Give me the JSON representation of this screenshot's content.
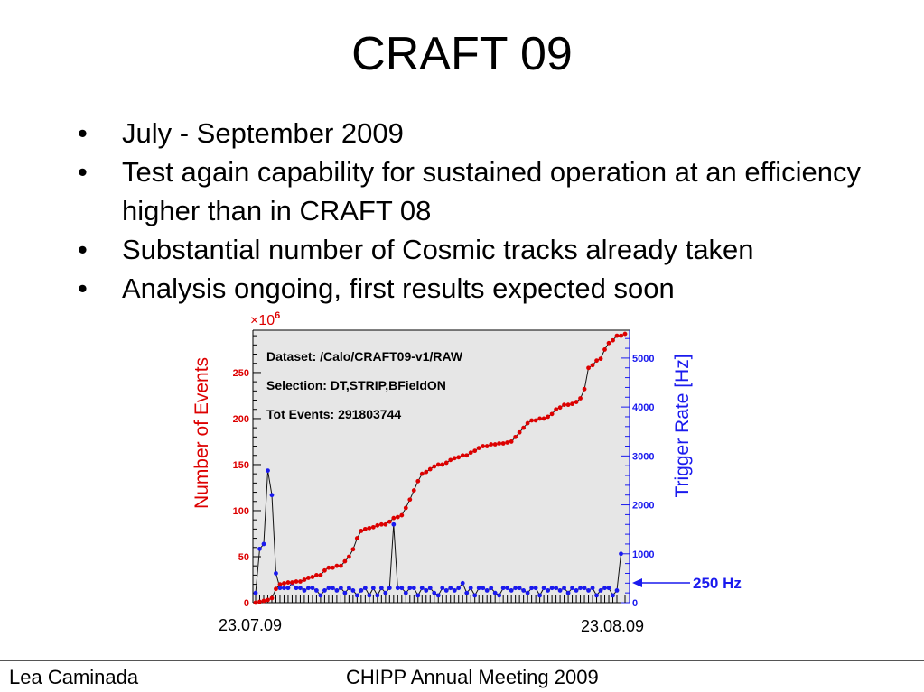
{
  "slide": {
    "title": "CRAFT 09",
    "bullets": [
      {
        "marker": "•",
        "text": "July - September 2009"
      },
      {
        "marker": "•",
        "text": "Test again capability for sustained operation at an efficiency higher than in CRAFT 08"
      },
      {
        "marker": "•",
        "text": "Substantial number of Cosmic tracks already taken"
      },
      {
        "marker": "•",
        "text": "Analysis ongoing, first results expected soon"
      }
    ],
    "footer": {
      "left": "Lea Caminada",
      "center": "CHIPP Annual Meeting 2009"
    }
  },
  "colors": {
    "events": "#dd0000",
    "rate": "#1a1aee",
    "plot_bg": "#e6e6e6",
    "frame_bg": "#ffffff",
    "arrow": "#1a1aee"
  },
  "chart_data": {
    "type": "line",
    "left_axis_label": "Number of Events",
    "right_axis_label": "Trigger Rate [Hz]",
    "multiplier": {
      "prefix": "×10",
      "exponent": "6"
    },
    "info_lines": [
      "Dataset: /Calo/CRAFT09-v1/RAW",
      "Selection: DT,STRIP,BFieldON",
      "Tot Events: 291803744"
    ],
    "x_start_label": "23.07.09",
    "x_end_label": "23.08.09",
    "y_left_ticks": [
      0,
      50,
      100,
      150,
      200,
      250
    ],
    "y_left_range": [
      0,
      296
    ],
    "y_right_ticks": [
      0,
      1000,
      2000,
      3000,
      4000,
      5000
    ],
    "y_right_range": [
      0,
      5570
    ],
    "annotation": {
      "text": "250 Hz",
      "rate": 250
    },
    "series": [
      {
        "name": "Number of Events",
        "values": [
          0,
          1,
          2,
          3,
          5,
          15,
          20,
          21,
          22,
          22,
          23,
          23,
          25,
          27,
          28,
          30,
          30,
          35,
          38,
          38,
          40,
          40,
          45,
          50,
          58,
          70,
          78,
          80,
          81,
          82,
          84,
          85,
          85,
          88,
          92,
          93,
          95,
          103,
          112,
          122,
          132,
          140,
          142,
          145,
          148,
          150,
          150,
          152,
          155,
          157,
          158,
          160,
          160,
          163,
          165,
          168,
          170,
          170,
          172,
          172,
          173,
          173,
          174,
          175,
          180,
          185,
          190,
          195,
          198,
          198,
          200,
          200,
          202,
          205,
          210,
          212,
          215,
          215,
          216,
          218,
          222,
          232,
          255,
          258,
          263,
          265,
          275,
          282,
          285,
          290,
          290,
          292
        ]
      },
      {
        "name": "Trigger Rate",
        "values": [
          200,
          1100,
          1200,
          2700,
          2200,
          600,
          300,
          300,
          300,
          400,
          300,
          300,
          250,
          300,
          300,
          250,
          150,
          250,
          300,
          300,
          250,
          300,
          200,
          300,
          250,
          150,
          250,
          300,
          150,
          300,
          150,
          300,
          200,
          300,
          1600,
          300,
          300,
          200,
          300,
          300,
          150,
          300,
          250,
          300,
          200,
          150,
          300,
          250,
          300,
          250,
          300,
          400,
          200,
          300,
          150,
          300,
          300,
          250,
          300,
          200,
          150,
          300,
          300,
          250,
          300,
          300,
          250,
          200,
          300,
          300,
          150,
          300,
          250,
          300,
          300,
          250,
          300,
          200,
          300,
          250,
          300,
          300,
          250,
          300,
          150,
          250,
          300,
          300,
          150,
          250,
          1000
        ]
      }
    ]
  }
}
